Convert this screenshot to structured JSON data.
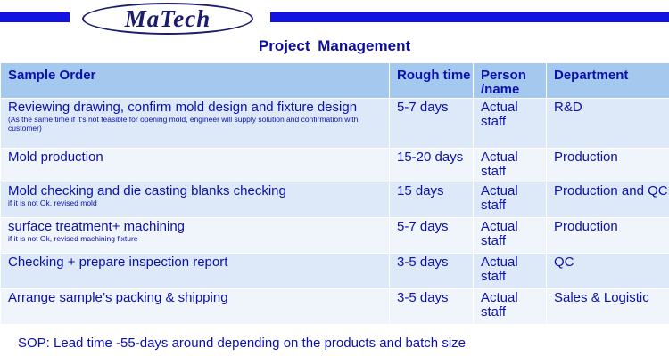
{
  "logo": {
    "text": "MaTech"
  },
  "title": "Project  Management",
  "table": {
    "headers": [
      "Sample Order",
      "Rough time",
      "Person /name",
      "Department"
    ],
    "rows": [
      {
        "task": "Reviewing drawing, confirm mold design and fixture design",
        "note": "(As the same time if it's not feasible for opening mold, engineer will supply solution and confirmation with customer)",
        "time": "5-7 days",
        "person": "Actual staff",
        "dept": "R&D"
      },
      {
        "task": "Mold production",
        "note": "",
        "time": "15-20 days",
        "person": "Actual staff",
        "dept": "Production"
      },
      {
        "task": "Mold checking and die casting blanks checking",
        "note": "if it is not Ok, revised mold",
        "time": "15 days",
        "person": "Actual staff",
        "dept": "Production and QC"
      },
      {
        "task": "surface treatment+ machining",
        "note": "if it is not Ok, revised machining fixture",
        "time": "5-7 days",
        "person": "Actual staff",
        "dept": "Production"
      },
      {
        "task": "Checking + prepare inspection report",
        "note": "",
        "time": "3-5 days",
        "person": "Actual staff",
        "dept": "QC"
      },
      {
        "task": "Arrange sample’s packing & shipping",
        "note": "",
        "time": "3-5 days",
        "person": "Actual staff",
        "dept": "Sales & Logistic"
      }
    ]
  },
  "footer": "SOP: Lead time -55-days around depending on the products and batch size",
  "colors": {
    "accent_bar": "#1414e0",
    "text": "#0a10b0",
    "header_bg": "#a5c8ee",
    "row_odd": "#dde9f8",
    "row_even": "#f0f5fc"
  }
}
